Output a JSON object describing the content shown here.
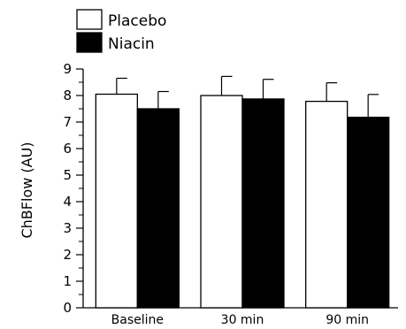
{
  "chart_data": {
    "type": "bar",
    "ylabel": "ChBFlow (AU)",
    "ylim": [
      0,
      9
    ],
    "yticks": [
      "0",
      "1",
      "2",
      "3",
      "4",
      "5",
      "6",
      "7",
      "8",
      "9"
    ],
    "categories": [
      "Baseline",
      "30 min",
      "90 min"
    ],
    "legend_placement": "top-left",
    "grid": false,
    "error_bars": "upper",
    "series": [
      {
        "name": "Placebo",
        "color": "#ffffff",
        "values": [
          8.05,
          8.0,
          7.78
        ],
        "errors": [
          0.6,
          0.72,
          0.7
        ]
      },
      {
        "name": "Niacin",
        "color": "#000000",
        "values": [
          7.5,
          7.87,
          7.18
        ],
        "errors": [
          0.65,
          0.74,
          0.86
        ]
      }
    ]
  }
}
